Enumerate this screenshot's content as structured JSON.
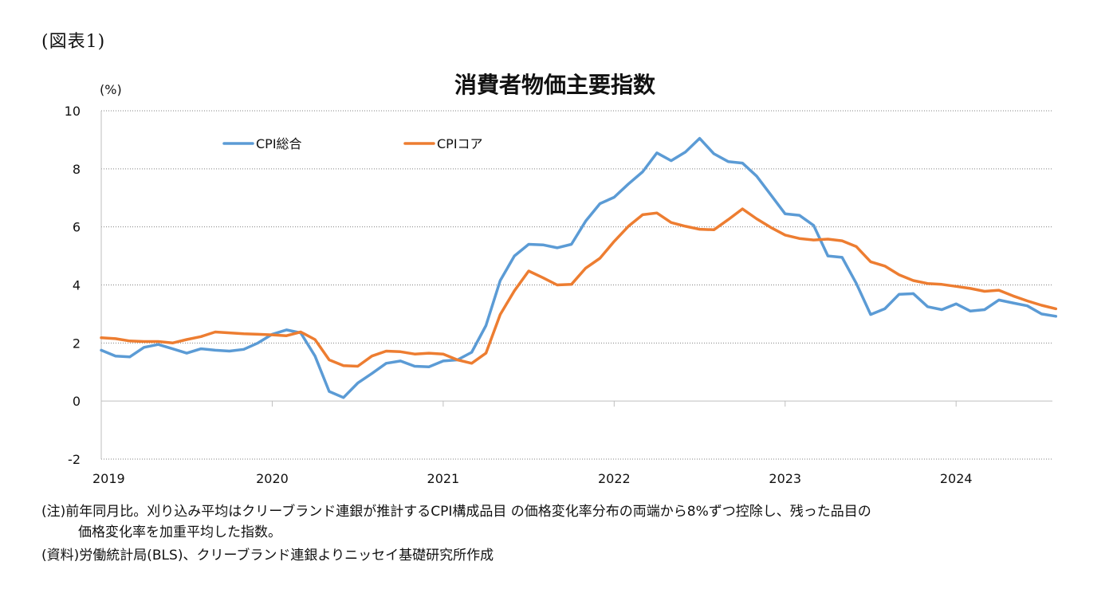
{
  "figure_label": "(図表1)",
  "notes": {
    "note_line1": "(注)前年同月比。刈り込み平均はクリーブランド連銀が推計するCPI構成品目 の価格変化率分布の両端から8%ずつ控除し、残った品目の",
    "note_line2": "価格変化率を加重平均した指数。",
    "source": "(資料)労働統計局(BLS)、クリーブランド連銀よりニッセイ基礎研究所作成"
  },
  "colors": {
    "cpi_total": "#5b9bd5",
    "cpi_core": "#ed7d31",
    "grid": "#808080"
  },
  "chart_data": {
    "type": "line",
    "title": "消費者物価主要指数",
    "ylabel": "(%)",
    "xlabel": "",
    "ylim": [
      -2,
      10
    ],
    "yticks": [
      -2,
      0,
      2,
      4,
      6,
      8,
      10
    ],
    "ytick_labels": [
      "-2",
      "0",
      "2",
      "4",
      "6",
      "8",
      "10"
    ],
    "x_start": "2019-01",
    "x_labels": [
      "2019",
      "2020",
      "2021",
      "2022",
      "2023",
      "2024"
    ],
    "grid": true,
    "legend_position": "top-left",
    "series": [
      {
        "name": "CPI総合",
        "values": [
          1.75,
          1.55,
          1.52,
          1.85,
          1.95,
          1.8,
          1.65,
          1.8,
          1.75,
          1.72,
          1.78,
          2.0,
          2.3,
          2.45,
          2.35,
          1.55,
          0.33,
          0.12,
          0.62,
          0.95,
          1.3,
          1.38,
          1.2,
          1.18,
          1.38,
          1.42,
          1.68,
          2.6,
          4.15,
          5.0,
          5.4,
          5.38,
          5.28,
          5.4,
          6.2,
          6.8,
          7.02,
          7.48,
          7.9,
          8.55,
          8.28,
          8.58,
          9.05,
          8.52,
          8.25,
          8.2,
          7.75,
          7.1,
          6.45,
          6.4,
          6.05,
          5.0,
          4.95,
          4.05,
          2.98,
          3.18,
          3.68,
          3.7,
          3.25,
          3.15,
          3.35,
          3.1,
          3.15,
          3.48,
          3.38,
          3.28,
          3.0,
          2.92
        ]
      },
      {
        "name": "CPIコア",
        "values": [
          2.18,
          2.15,
          2.07,
          2.05,
          2.05,
          2.0,
          2.12,
          2.22,
          2.38,
          2.35,
          2.32,
          2.3,
          2.28,
          2.25,
          2.38,
          2.12,
          1.42,
          1.22,
          1.2,
          1.55,
          1.72,
          1.7,
          1.62,
          1.65,
          1.62,
          1.42,
          1.3,
          1.65,
          2.98,
          3.8,
          4.48,
          4.25,
          4.0,
          4.02,
          4.58,
          4.92,
          5.5,
          6.02,
          6.42,
          6.48,
          6.15,
          6.02,
          5.92,
          5.9,
          6.25,
          6.62,
          6.28,
          5.98,
          5.72,
          5.6,
          5.55,
          5.58,
          5.52,
          5.32,
          4.8,
          4.65,
          4.35,
          4.15,
          4.05,
          4.02,
          3.95,
          3.88,
          3.78,
          3.82,
          3.62,
          3.45,
          3.3,
          3.18
        ]
      }
    ]
  }
}
